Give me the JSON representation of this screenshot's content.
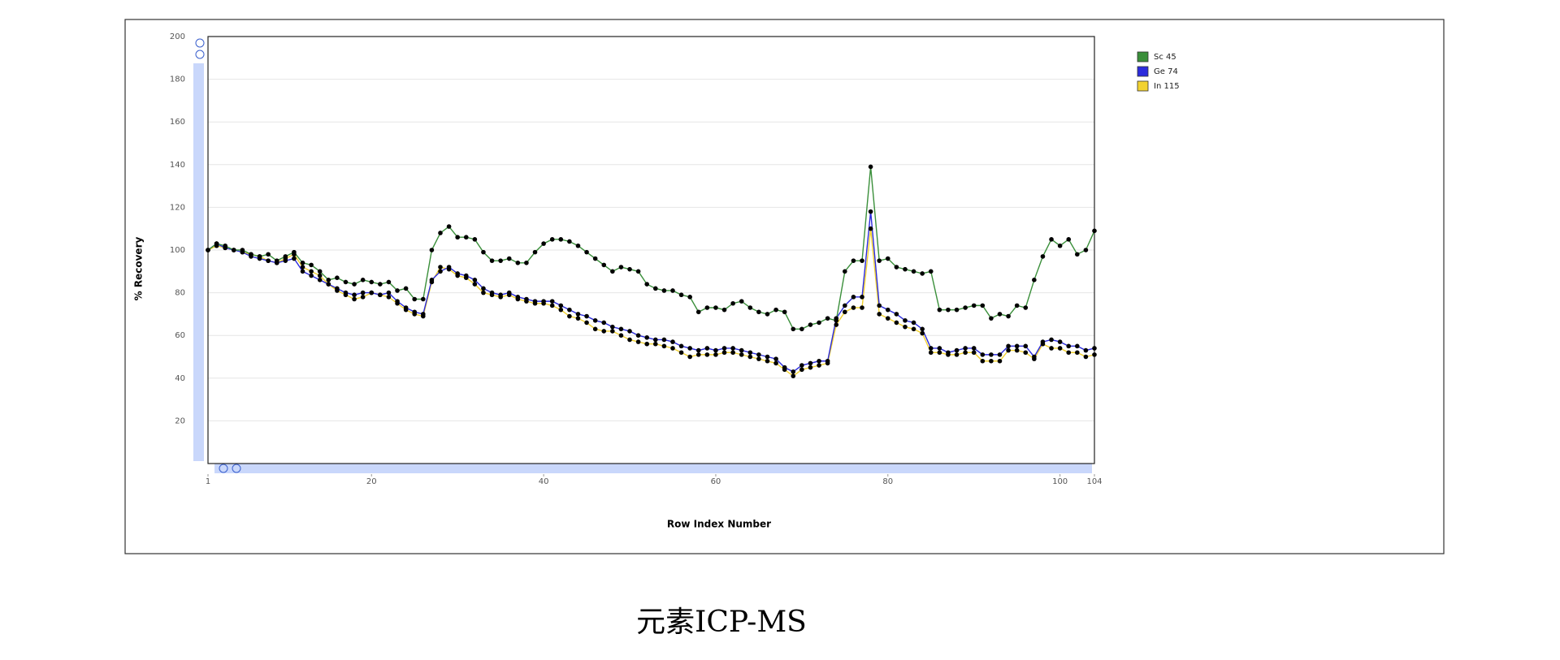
{
  "chart_data": {
    "type": "line",
    "xlabel": "Row Index Number",
    "ylabel": "% Recovery",
    "x": [
      1,
      2,
      3,
      4,
      5,
      6,
      7,
      8,
      9,
      10,
      11,
      12,
      13,
      14,
      15,
      16,
      17,
      18,
      19,
      20,
      21,
      22,
      23,
      24,
      25,
      26,
      27,
      28,
      29,
      30,
      31,
      32,
      33,
      34,
      35,
      36,
      37,
      38,
      39,
      40,
      41,
      42,
      43,
      44,
      45,
      46,
      47,
      48,
      49,
      50,
      51,
      52,
      53,
      54,
      55,
      56,
      57,
      58,
      59,
      60,
      61,
      62,
      63,
      64,
      65,
      66,
      67,
      68,
      69,
      70,
      71,
      72,
      73,
      74,
      75,
      76,
      77,
      78,
      79,
      80,
      81,
      82,
      83,
      84,
      85,
      86,
      87,
      88,
      89,
      90,
      91,
      92,
      93,
      94,
      95,
      96,
      97,
      98,
      99,
      100,
      101,
      102,
      103,
      104
    ],
    "series": [
      {
        "name": "Sc 45",
        "color": "#3a8f3a",
        "values": [
          100,
          103,
          102,
          100,
          100,
          98,
          97,
          98,
          95,
          97,
          99,
          94,
          93,
          90,
          86,
          87,
          85,
          84,
          86,
          85,
          84,
          85,
          81,
          82,
          77,
          77,
          100,
          108,
          111,
          106,
          106,
          105,
          99,
          95,
          95,
          96,
          94,
          94,
          99,
          103,
          105,
          105,
          104,
          102,
          99,
          96,
          93,
          90,
          92,
          91,
          90,
          84,
          82,
          81,
          81,
          79,
          78,
          71,
          73,
          73,
          72,
          75,
          76,
          73,
          71,
          70,
          72,
          71,
          63,
          63,
          65,
          66,
          68,
          67,
          90,
          95,
          95,
          139,
          95,
          96,
          92,
          91,
          90,
          89,
          90,
          72,
          72,
          72,
          73,
          74,
          74,
          68,
          70,
          69,
          74,
          73,
          86,
          97,
          105,
          102,
          105,
          98,
          100,
          109
        ]
      },
      {
        "name": "Ge 74",
        "color": "#2b2bdc",
        "values": [
          100,
          103,
          101,
          100,
          99,
          97,
          96,
          95,
          94,
          95,
          96,
          90,
          88,
          86,
          84,
          82,
          80,
          79,
          80,
          80,
          79,
          80,
          76,
          73,
          71,
          70,
          86,
          90,
          92,
          89,
          88,
          86,
          82,
          80,
          79,
          80,
          78,
          77,
          76,
          76,
          76,
          74,
          72,
          70,
          69,
          67,
          66,
          64,
          63,
          62,
          60,
          59,
          58,
          58,
          57,
          55,
          54,
          53,
          54,
          53,
          54,
          54,
          53,
          52,
          51,
          50,
          49,
          45,
          43,
          46,
          47,
          48,
          48,
          68,
          74,
          78,
          78,
          118,
          74,
          72,
          70,
          67,
          66,
          63,
          54,
          54,
          52,
          53,
          54,
          54,
          51,
          51,
          51,
          55,
          55,
          55,
          50,
          57,
          58,
          57,
          55,
          55,
          53,
          54
        ]
      },
      {
        "name": "In 115",
        "color": "#f2d230",
        "values": [
          100,
          102,
          101,
          100,
          99,
          98,
          97,
          95,
          94,
          96,
          98,
          92,
          90,
          88,
          84,
          81,
          79,
          77,
          78,
          80,
          79,
          78,
          75,
          72,
          70,
          69,
          85,
          92,
          91,
          88,
          87,
          84,
          80,
          79,
          78,
          79,
          77,
          76,
          75,
          75,
          74,
          72,
          69,
          68,
          66,
          63,
          62,
          62,
          60,
          58,
          57,
          56,
          56,
          55,
          54,
          52,
          50,
          51,
          51,
          51,
          52,
          52,
          51,
          50,
          49,
          48,
          47,
          44,
          41,
          44,
          45,
          46,
          47,
          65,
          71,
          73,
          73,
          110,
          70,
          68,
          66,
          64,
          63,
          61,
          52,
          52,
          51,
          51,
          52,
          52,
          48,
          48,
          48,
          53,
          53,
          52,
          49,
          56,
          54,
          54,
          52,
          52,
          50,
          51
        ]
      }
    ],
    "xlim": [
      1,
      104
    ],
    "xticks": [
      1,
      20,
      40,
      60,
      80,
      100,
      104
    ],
    "ylim": [
      0,
      200
    ],
    "yticks": [
      20,
      40,
      60,
      80,
      100,
      120,
      140,
      160,
      180,
      200
    ],
    "grid": true,
    "legend": "right",
    "marker_color": "#000000"
  },
  "caption": "元素ICP-MS"
}
